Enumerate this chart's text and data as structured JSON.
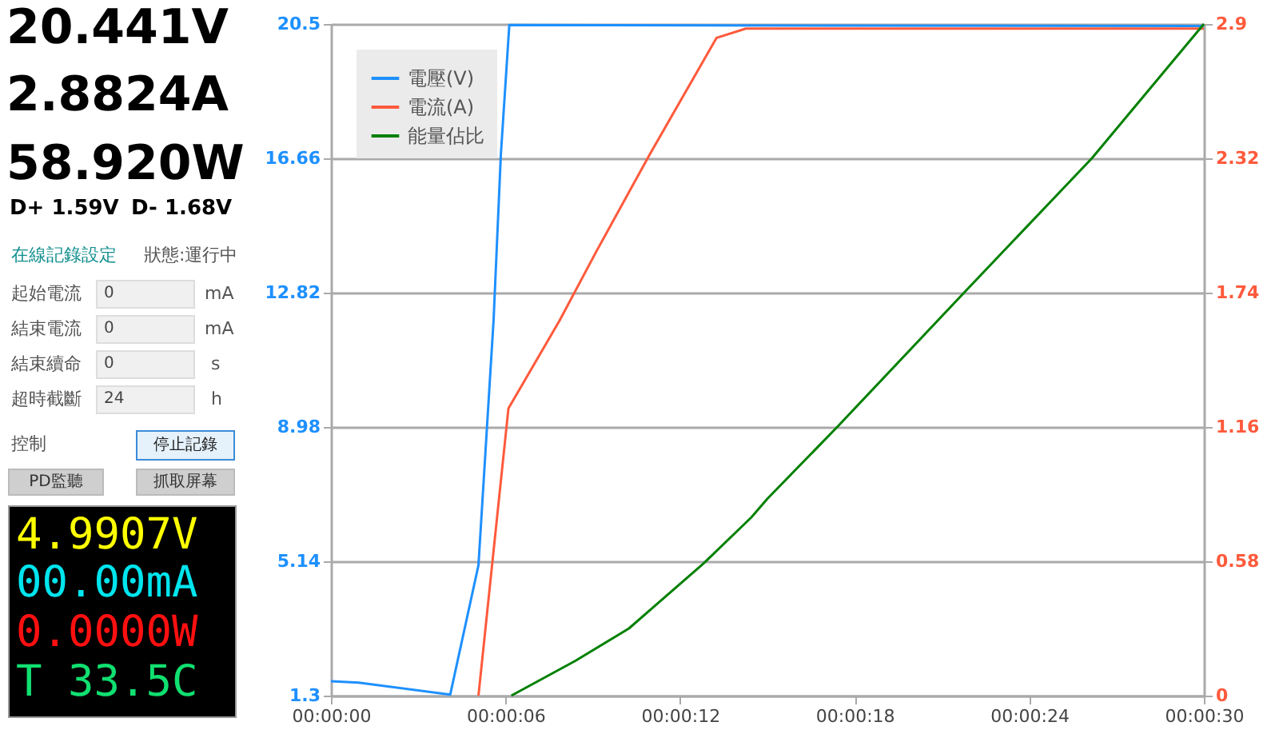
{
  "chart_data": [
    {
      "type": "other",
      "annotations": [
        "20.441V",
        "2.8824A",
        "58.920W",
        "D+ 1.59V",
        "D- 1.68V",
        "在線記錄設定",
        "狀態:運行中",
        "起始電流",
        "0",
        "mA",
        "結束電流",
        "0",
        "mA",
        "結束續命",
        "0",
        "s",
        "超時截斷",
        "24",
        "h",
        "控制",
        "停止記錄",
        "PD監聽",
        "抓取屏幕",
        "4.9907V",
        "00.00mA",
        "0.0000W",
        "T 33.5C"
      ]
    },
    {
      "type": "line",
      "xlim": [
        0,
        30
      ],
      "xticks": [
        {
          "value": 0,
          "label": "00:00:00"
        },
        {
          "value": 6,
          "label": "00:00:06"
        },
        {
          "value": 12,
          "label": "00:00:12"
        },
        {
          "value": 18,
          "label": "00:00:18"
        },
        {
          "value": 24,
          "label": "00:00:24"
        },
        {
          "value": 30,
          "label": "00:00:30"
        }
      ],
      "ylim": [
        1.3,
        20.5
      ],
      "yticks": [
        1.3,
        5.14,
        8.98,
        12.82,
        16.66,
        20.5
      ],
      "y2lim": [
        0,
        2.9
      ],
      "y2ticks": [
        0,
        0.58,
        1.16,
        1.74,
        2.32,
        2.9
      ],
      "grid": "y",
      "legend": "top left",
      "series": [
        {
          "name": "電壓(V)",
          "color": "#1e90ff",
          "x": [
            0,
            0.95,
            4.1,
            5.07,
            5.59,
            5.84,
            6.13,
            30
          ],
          "values": [
            1.71,
            1.67,
            1.33,
            5.03,
            12.04,
            16.77,
            20.47,
            20.44
          ]
        },
        {
          "name": "電流(A)",
          "color": "#ff5a3c",
          "axis": "y2",
          "x": [
            5.07,
            6.1,
            7.86,
            9.13,
            10.97,
            13.25,
            14.26,
            30
          ],
          "values": [
            0,
            1.24,
            1.62,
            1.92,
            2.34,
            2.84,
            2.88,
            2.88
          ]
        },
        {
          "name": "能量佔比",
          "color": "#008000",
          "axis": "y2",
          "x": [
            6.2,
            8.4,
            10.24,
            12.8,
            14.45,
            15.0,
            17.4,
            21.76,
            26.15,
            30
          ],
          "values": [
            0,
            0.15,
            0.29,
            0.57,
            0.77,
            0.85,
            1.16,
            1.74,
            2.32,
            2.9
          ]
        }
      ]
    }
  ]
}
